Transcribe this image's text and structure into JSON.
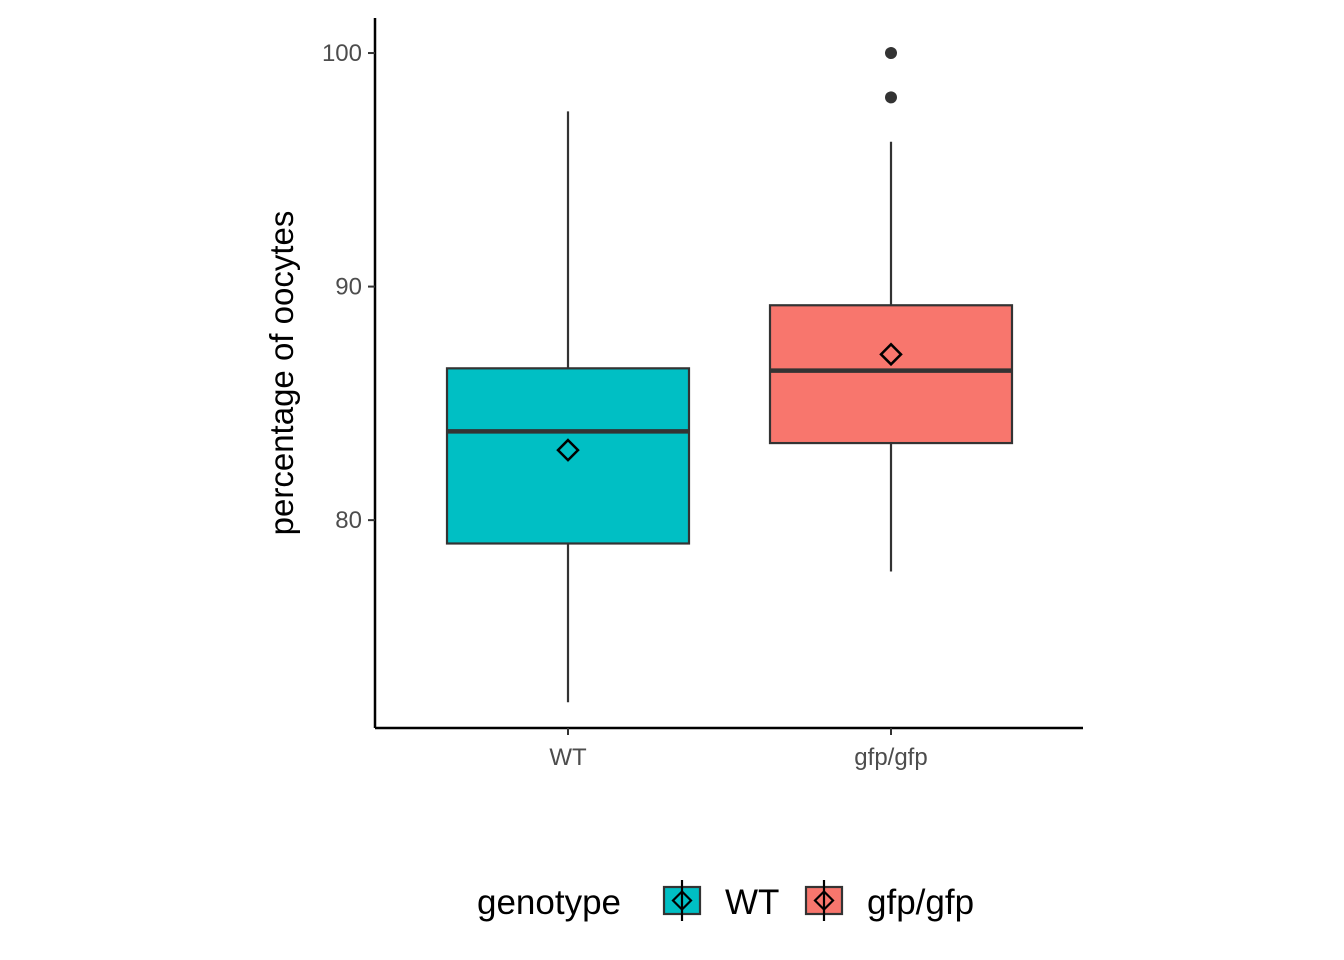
{
  "chart_data": {
    "type": "box",
    "title": "",
    "xlabel": "",
    "ylabel": "percentage of oocytes",
    "ylim": [
      71.1,
      101.5
    ],
    "yticks": [
      80,
      90,
      100
    ],
    "categories": [
      "WT",
      "gfp/gfp"
    ],
    "series": [
      {
        "name": "WT",
        "color": "#00BFC4",
        "whisker_low": 72.2,
        "q1": 79.0,
        "median": 83.8,
        "q3": 86.5,
        "whisker_high": 97.5,
        "mean": 83.0,
        "outliers": []
      },
      {
        "name": "gfp/gfp",
        "color": "#F8766D",
        "whisker_low": 77.8,
        "q1": 83.3,
        "median": 86.4,
        "q3": 89.2,
        "whisker_high": 96.2,
        "mean": 87.1,
        "outliers": [
          98.1,
          100.0
        ]
      }
    ],
    "grid": false,
    "legend": {
      "title": "genotype",
      "position": "bottom",
      "entries": [
        "WT",
        "gfp/gfp"
      ]
    }
  }
}
